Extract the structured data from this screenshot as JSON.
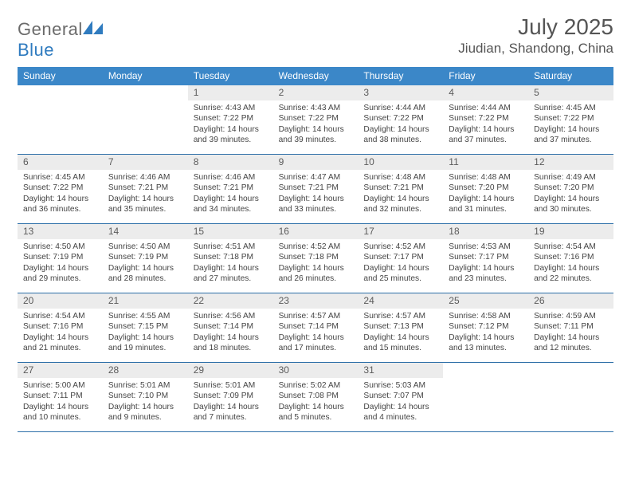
{
  "logo": {
    "part1": "General",
    "part2": "Blue"
  },
  "title": "July 2025",
  "location": "Jiudian, Shandong, China",
  "colors": {
    "header_bg": "#3b87c8",
    "header_text": "#ffffff",
    "daynum_bg": "#ececec",
    "daynum_text": "#5b5b5b",
    "border": "#2d6fa8",
    "logo_gray": "#6b6b6b",
    "logo_blue": "#2f7bbf",
    "logo_shape": "#2f7bbf"
  },
  "weekdays": [
    "Sunday",
    "Monday",
    "Tuesday",
    "Wednesday",
    "Thursday",
    "Friday",
    "Saturday"
  ],
  "weeks": [
    [
      null,
      null,
      {
        "n": "1",
        "sr": "4:43 AM",
        "ss": "7:22 PM",
        "dl": "14 hours and 39 minutes."
      },
      {
        "n": "2",
        "sr": "4:43 AM",
        "ss": "7:22 PM",
        "dl": "14 hours and 39 minutes."
      },
      {
        "n": "3",
        "sr": "4:44 AM",
        "ss": "7:22 PM",
        "dl": "14 hours and 38 minutes."
      },
      {
        "n": "4",
        "sr": "4:44 AM",
        "ss": "7:22 PM",
        "dl": "14 hours and 37 minutes."
      },
      {
        "n": "5",
        "sr": "4:45 AM",
        "ss": "7:22 PM",
        "dl": "14 hours and 37 minutes."
      }
    ],
    [
      {
        "n": "6",
        "sr": "4:45 AM",
        "ss": "7:22 PM",
        "dl": "14 hours and 36 minutes."
      },
      {
        "n": "7",
        "sr": "4:46 AM",
        "ss": "7:21 PM",
        "dl": "14 hours and 35 minutes."
      },
      {
        "n": "8",
        "sr": "4:46 AM",
        "ss": "7:21 PM",
        "dl": "14 hours and 34 minutes."
      },
      {
        "n": "9",
        "sr": "4:47 AM",
        "ss": "7:21 PM",
        "dl": "14 hours and 33 minutes."
      },
      {
        "n": "10",
        "sr": "4:48 AM",
        "ss": "7:21 PM",
        "dl": "14 hours and 32 minutes."
      },
      {
        "n": "11",
        "sr": "4:48 AM",
        "ss": "7:20 PM",
        "dl": "14 hours and 31 minutes."
      },
      {
        "n": "12",
        "sr": "4:49 AM",
        "ss": "7:20 PM",
        "dl": "14 hours and 30 minutes."
      }
    ],
    [
      {
        "n": "13",
        "sr": "4:50 AM",
        "ss": "7:19 PM",
        "dl": "14 hours and 29 minutes."
      },
      {
        "n": "14",
        "sr": "4:50 AM",
        "ss": "7:19 PM",
        "dl": "14 hours and 28 minutes."
      },
      {
        "n": "15",
        "sr": "4:51 AM",
        "ss": "7:18 PM",
        "dl": "14 hours and 27 minutes."
      },
      {
        "n": "16",
        "sr": "4:52 AM",
        "ss": "7:18 PM",
        "dl": "14 hours and 26 minutes."
      },
      {
        "n": "17",
        "sr": "4:52 AM",
        "ss": "7:17 PM",
        "dl": "14 hours and 25 minutes."
      },
      {
        "n": "18",
        "sr": "4:53 AM",
        "ss": "7:17 PM",
        "dl": "14 hours and 23 minutes."
      },
      {
        "n": "19",
        "sr": "4:54 AM",
        "ss": "7:16 PM",
        "dl": "14 hours and 22 minutes."
      }
    ],
    [
      {
        "n": "20",
        "sr": "4:54 AM",
        "ss": "7:16 PM",
        "dl": "14 hours and 21 minutes."
      },
      {
        "n": "21",
        "sr": "4:55 AM",
        "ss": "7:15 PM",
        "dl": "14 hours and 19 minutes."
      },
      {
        "n": "22",
        "sr": "4:56 AM",
        "ss": "7:14 PM",
        "dl": "14 hours and 18 minutes."
      },
      {
        "n": "23",
        "sr": "4:57 AM",
        "ss": "7:14 PM",
        "dl": "14 hours and 17 minutes."
      },
      {
        "n": "24",
        "sr": "4:57 AM",
        "ss": "7:13 PM",
        "dl": "14 hours and 15 minutes."
      },
      {
        "n": "25",
        "sr": "4:58 AM",
        "ss": "7:12 PM",
        "dl": "14 hours and 13 minutes."
      },
      {
        "n": "26",
        "sr": "4:59 AM",
        "ss": "7:11 PM",
        "dl": "14 hours and 12 minutes."
      }
    ],
    [
      {
        "n": "27",
        "sr": "5:00 AM",
        "ss": "7:11 PM",
        "dl": "14 hours and 10 minutes."
      },
      {
        "n": "28",
        "sr": "5:01 AM",
        "ss": "7:10 PM",
        "dl": "14 hours and 9 minutes."
      },
      {
        "n": "29",
        "sr": "5:01 AM",
        "ss": "7:09 PM",
        "dl": "14 hours and 7 minutes."
      },
      {
        "n": "30",
        "sr": "5:02 AM",
        "ss": "7:08 PM",
        "dl": "14 hours and 5 minutes."
      },
      {
        "n": "31",
        "sr": "5:03 AM",
        "ss": "7:07 PM",
        "dl": "14 hours and 4 minutes."
      },
      null,
      null
    ]
  ],
  "labels": {
    "sunrise": "Sunrise: ",
    "sunset": "Sunset: ",
    "daylight": "Daylight: "
  }
}
